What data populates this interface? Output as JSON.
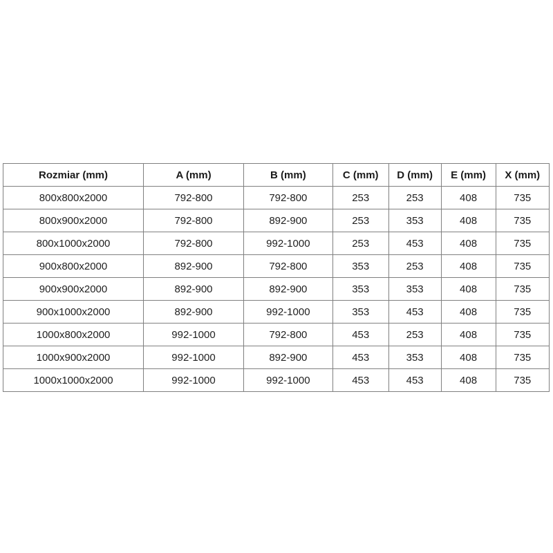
{
  "table": {
    "columns": [
      "Rozmiar (mm)",
      "A (mm)",
      "B (mm)",
      "C (mm)",
      "D (mm)",
      "E (mm)",
      "X (mm)"
    ],
    "rows": [
      [
        "800x800x2000",
        "792-800",
        "792-800",
        "253",
        "253",
        "408",
        "735"
      ],
      [
        "800x900x2000",
        "792-800",
        "892-900",
        "253",
        "353",
        "408",
        "735"
      ],
      [
        "800x1000x2000",
        "792-800",
        "992-1000",
        "253",
        "453",
        "408",
        "735"
      ],
      [
        "900x800x2000",
        "892-900",
        "792-800",
        "353",
        "253",
        "408",
        "735"
      ],
      [
        "900x900x2000",
        "892-900",
        "892-900",
        "353",
        "353",
        "408",
        "735"
      ],
      [
        "900x1000x2000",
        "892-900",
        "992-1000",
        "353",
        "453",
        "408",
        "735"
      ],
      [
        "1000x800x2000",
        "992-1000",
        "792-800",
        "453",
        "253",
        "408",
        "735"
      ],
      [
        "1000x900x2000",
        "992-1000",
        "892-900",
        "453",
        "353",
        "408",
        "735"
      ],
      [
        "1000x1000x2000",
        "992-1000",
        "992-1000",
        "453",
        "453",
        "408",
        "735"
      ]
    ]
  },
  "colors": {
    "background": "#ffffff",
    "border": "#7f7f7f",
    "text": "#1a1a1a"
  }
}
